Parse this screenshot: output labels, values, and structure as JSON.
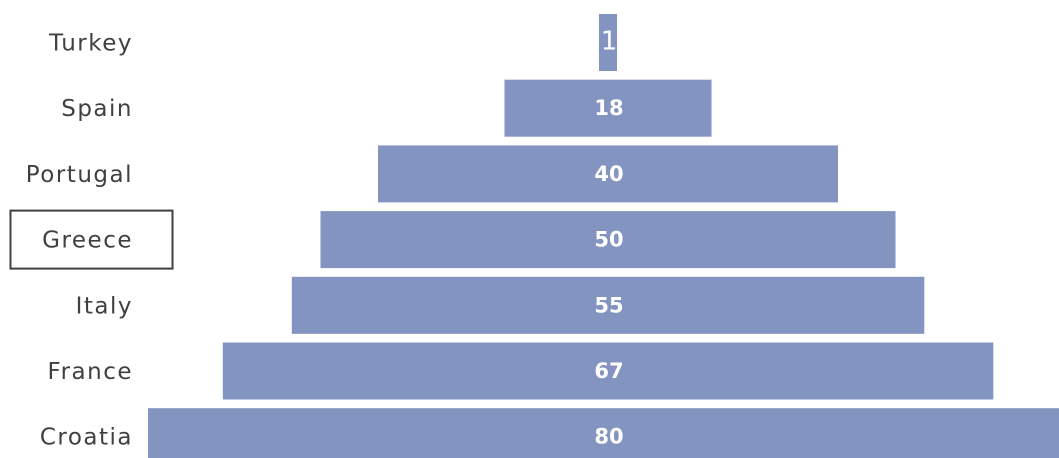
{
  "chart_data": {
    "type": "bar",
    "orientation": "horizontal-funnel",
    "categories": [
      "Turkey",
      "Spain",
      "Portugal",
      "Greece",
      "Italy",
      "France",
      "Croatia"
    ],
    "values": [
      1,
      18,
      40,
      50,
      55,
      67,
      80
    ],
    "data_labels": [
      "1",
      "18",
      "40",
      "50",
      "55",
      "67",
      "80"
    ],
    "selected_category": "Greece",
    "bar_color": "#8494c0",
    "label_color": "#404040",
    "selection_border_color": "#404040",
    "grid": false,
    "legend": "none"
  }
}
